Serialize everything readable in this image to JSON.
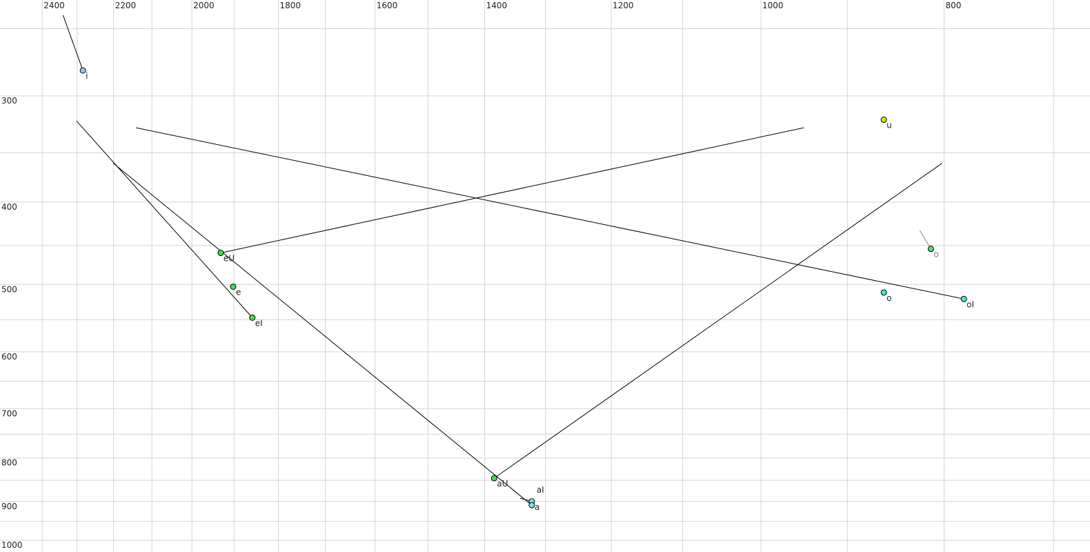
{
  "chart_data": {
    "type": "scatter",
    "title": "",
    "xlabel": "",
    "ylabel": "",
    "x_scale": "log",
    "y_scale": "log",
    "x_reversed": true,
    "xlim": [
      2550,
      690
    ],
    "ylim": [
      231,
      1015
    ],
    "grid": true,
    "x_ticks": [
      2400,
      2200,
      2000,
      1800,
      1600,
      1400,
      1200,
      1000,
      800
    ],
    "x_grid": [
      2400,
      2300,
      2200,
      2100,
      2000,
      1900,
      1800,
      1700,
      1600,
      1500,
      1400,
      1300,
      1200,
      1100,
      1000,
      900,
      800,
      700
    ],
    "y_ticks": [
      300,
      400,
      500,
      600,
      700,
      800,
      900,
      1000
    ],
    "y_grid": [
      250,
      300,
      350,
      400,
      450,
      500,
      550,
      600,
      650,
      700,
      750,
      800,
      850,
      900,
      950,
      1000
    ],
    "points": [
      {
        "label": "i",
        "f2": 2284,
        "f1": 280,
        "color": "#9cc4f2",
        "label_color": "#222222",
        "trail": [
          2340,
          241
        ]
      },
      {
        "label": "u",
        "f2": 861,
        "f1": 320,
        "color": "#c4ec1c",
        "label_color": "#222222",
        "trail": null
      },
      {
        "label": "eU",
        "f2": 1931,
        "f1": 459,
        "color": "#3fe052",
        "label_color": "#222222",
        "trail": [
          949,
          327
        ]
      },
      {
        "label": "e",
        "f2": 1902,
        "f1": 503,
        "color": "#3fe052",
        "label_color": "#222222",
        "trail": null
      },
      {
        "label": "eI",
        "f2": 1858,
        "f1": 547,
        "color": "#3fe052",
        "label_color": "#222222",
        "trail": [
          2302,
          321
        ]
      },
      {
        "label": "o",
        "f2": 813,
        "f1": 454,
        "color": "#4fe070",
        "label_color": "#808080",
        "trail": [
          824,
          432
        ],
        "trail_color": "#808080"
      },
      {
        "label": "o",
        "f2": 861,
        "f1": 511,
        "color": "#44e8c4",
        "label_color": "#222222",
        "trail": null
      },
      {
        "label": "oI",
        "f2": 781,
        "f1": 520,
        "color": "#44e8c4",
        "label_color": "#222222",
        "trail": [
          2141,
          327
        ]
      },
      {
        "label": "aU",
        "f2": 1384,
        "f1": 845,
        "color": "#3fe052",
        "label_color": "#222222",
        "trail": [
          802,
          360
        ]
      },
      {
        "label": "a",
        "f2": 1322,
        "f1": 900,
        "color": "#7ee0f4",
        "label_color": "#222222",
        "trail": [
          1341,
          892
        ]
      },
      {
        "label": "aI",
        "f2": 1322,
        "f1": 909,
        "color": "#7ee0f4",
        "label_color": "#222222",
        "trail": [
          2201,
          360
        ]
      }
    ]
  }
}
